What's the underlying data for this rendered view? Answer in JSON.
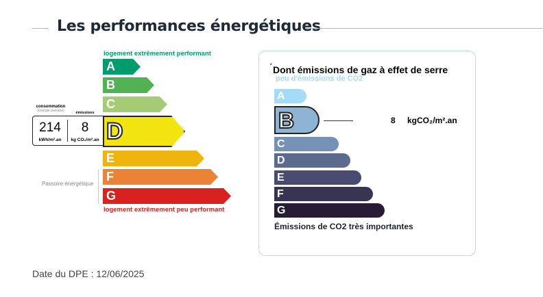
{
  "title": "Les performances énergétiques",
  "energy": {
    "top_label": "logement extrêmement performant",
    "bottom_label": "logement extrêmement peu performant",
    "passoire": "Passoire énergétique",
    "classes": [
      {
        "letter": "A",
        "color": "#009c6d"
      },
      {
        "letter": "B",
        "color": "#52b153"
      },
      {
        "letter": "C",
        "color": "#a5cc74"
      },
      {
        "letter": "D",
        "color": "#f2e50f"
      },
      {
        "letter": "E",
        "color": "#f0b40f"
      },
      {
        "letter": "F",
        "color": "#eb8235"
      },
      {
        "letter": "G",
        "color": "#d7221f"
      }
    ],
    "current": "D",
    "consumption_label": "consommation",
    "consumption_sub": "(énergie primaire)",
    "consumption_value": "214",
    "consumption_unit": "kWh/m².an",
    "emissions_label": "émissions",
    "emissions_value": "8",
    "emissions_unit": "kg CO₂/m².an"
  },
  "ges": {
    "title": "Dont émissions de gaz à effet de serre",
    "title_mark": "*",
    "top_label": "peu d'émissions de CO2",
    "bottom_label": "Émissions de CO2 très importantes",
    "classes": [
      {
        "letter": "A",
        "color": "#a4dbf8"
      },
      {
        "letter": "B",
        "color": "#8fb3d3"
      },
      {
        "letter": "C",
        "color": "#7592b6"
      },
      {
        "letter": "D",
        "color": "#5c6a8f"
      },
      {
        "letter": "E",
        "color": "#494b71"
      },
      {
        "letter": "F",
        "color": "#3a3453"
      },
      {
        "letter": "G",
        "color": "#281b35"
      }
    ],
    "current": "B",
    "value": "8",
    "unit": "kgCO₂/m².an"
  },
  "date": "Date du DPE : 12/06/2025"
}
